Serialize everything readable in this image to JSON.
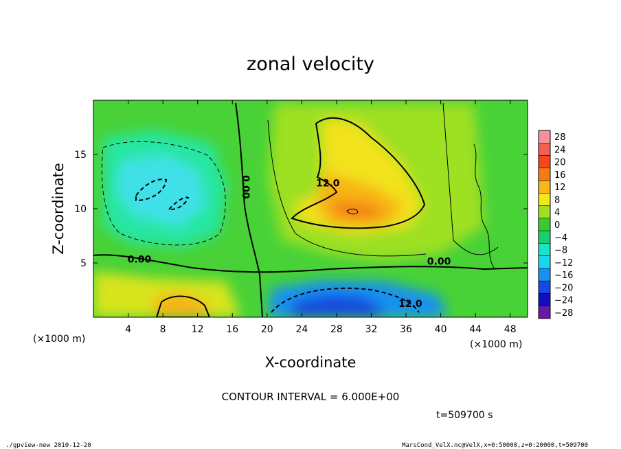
{
  "chart_data": {
    "type": "heatmap",
    "title": "zonal velocity",
    "xlabel": "X-coordinate",
    "ylabel": "Z-coordinate",
    "x_unit": "(×1000 m)",
    "y_unit": "(×1000 m)",
    "xlim": [
      0,
      50
    ],
    "ylim": [
      0,
      20
    ],
    "x_ticks": [
      4,
      8,
      12,
      16,
      20,
      24,
      28,
      32,
      36,
      40,
      44,
      48
    ],
    "y_ticks": [
      5,
      10,
      15
    ],
    "contour_interval_text": "CONTOUR INTERVAL = 6.000E+00",
    "time_text": "t=509700 s",
    "contour_labels": [
      {
        "text": "0.00",
        "x": 17.5,
        "z": 12.0,
        "rotate": 90
      },
      {
        "text": "0.00",
        "x": 5.3,
        "z": 5.3,
        "rotate": 0
      },
      {
        "text": "0.00",
        "x": 39.8,
        "z": 5.1,
        "rotate": 0
      },
      {
        "text": "12.0",
        "x": 27.0,
        "z": 12.3,
        "rotate": 0
      },
      {
        "text": "12.0",
        "x": 36.5,
        "z": 1.2,
        "rotate": 0
      }
    ],
    "colorbar": {
      "levels": [
        28,
        24,
        20,
        16,
        12,
        8,
        4,
        0,
        -4,
        -8,
        -12,
        -16,
        -20,
        -24,
        -28
      ],
      "colors": [
        "#f8909c",
        "#f45e50",
        "#f8461c",
        "#f87a14",
        "#f8b818",
        "#f0e81c",
        "#a0e020",
        "#38cc2c",
        "#18d070",
        "#18e4c8",
        "#18d8f0",
        "#1890f0",
        "#1848e8",
        "#1010c0",
        "#6818a8"
      ]
    }
  },
  "footer": {
    "left": "./gpview-new   2010-12-20",
    "right": "MarsCond_VelX.nc@VelX,x=0:50000,z=0:20000,t=509700"
  }
}
